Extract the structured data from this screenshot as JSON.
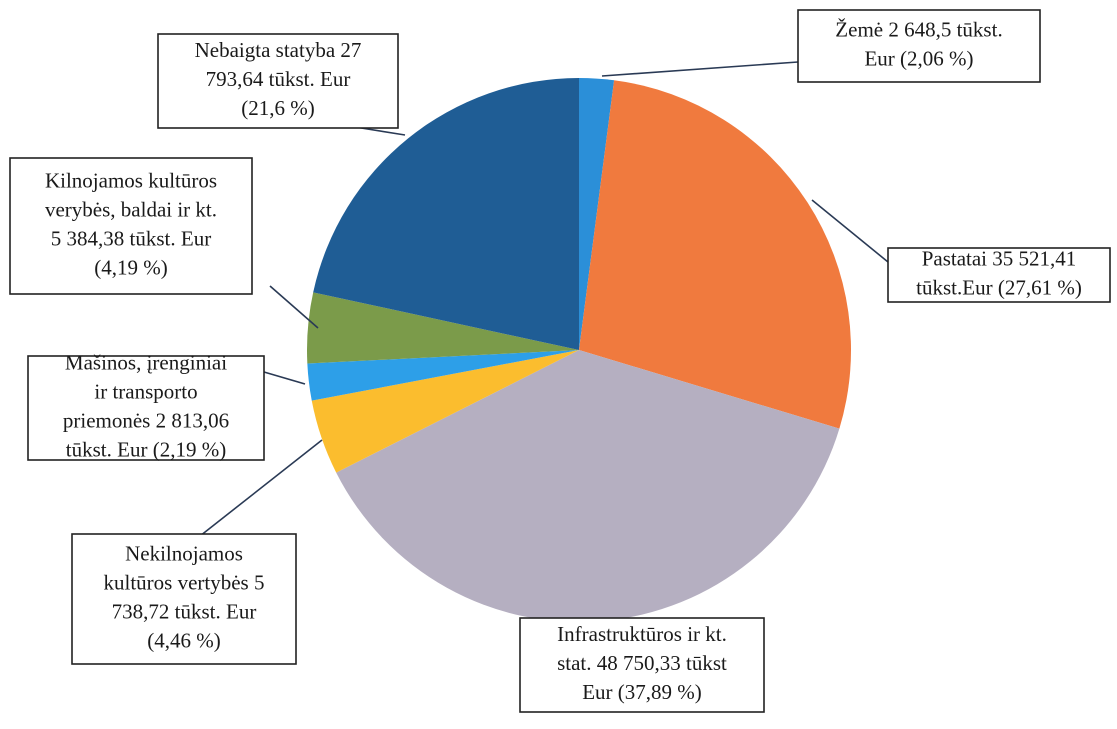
{
  "chart_data": {
    "type": "pie",
    "values": [
      2.06,
      27.61,
      37.89,
      4.46,
      2.19,
      4.19,
      21.6
    ],
    "value_labels": [
      [
        "Žemė 2 648,5 tūkst.",
        "Eur (2,06 %)"
      ],
      [
        "Pastatai 35 521,41",
        "tūkst.Eur (27,61 %)"
      ],
      [
        "Infrastruktūros ir kt.",
        "stat. 48 750,33 tūkst",
        "Eur (37,89 %)"
      ],
      [
        "Nekilnojamos",
        "kultūros vertybės 5",
        "738,72 tūkst. Eur",
        "(4,46 %)"
      ],
      [
        "Mašinos,  įrenginiai",
        "ir transporto",
        "priemonės 2 813,06",
        "tūkst. Eur (2,19 %)"
      ],
      [
        "Kilnojamos kultūros",
        "verybės, baldai ir kt.",
        "5 384,38 tūkst. Eur",
        "(4,19 %)"
      ],
      [
        "Nebaigta statyba  27",
        "793,64 tūkst. Eur",
        "(21,6 %)"
      ]
    ],
    "colors": [
      "#2b8fd8",
      "#f07a3e",
      "#b5afc1",
      "#fbbd2e",
      "#2d9fe8",
      "#7b9b4a",
      "#1f5d95"
    ]
  }
}
